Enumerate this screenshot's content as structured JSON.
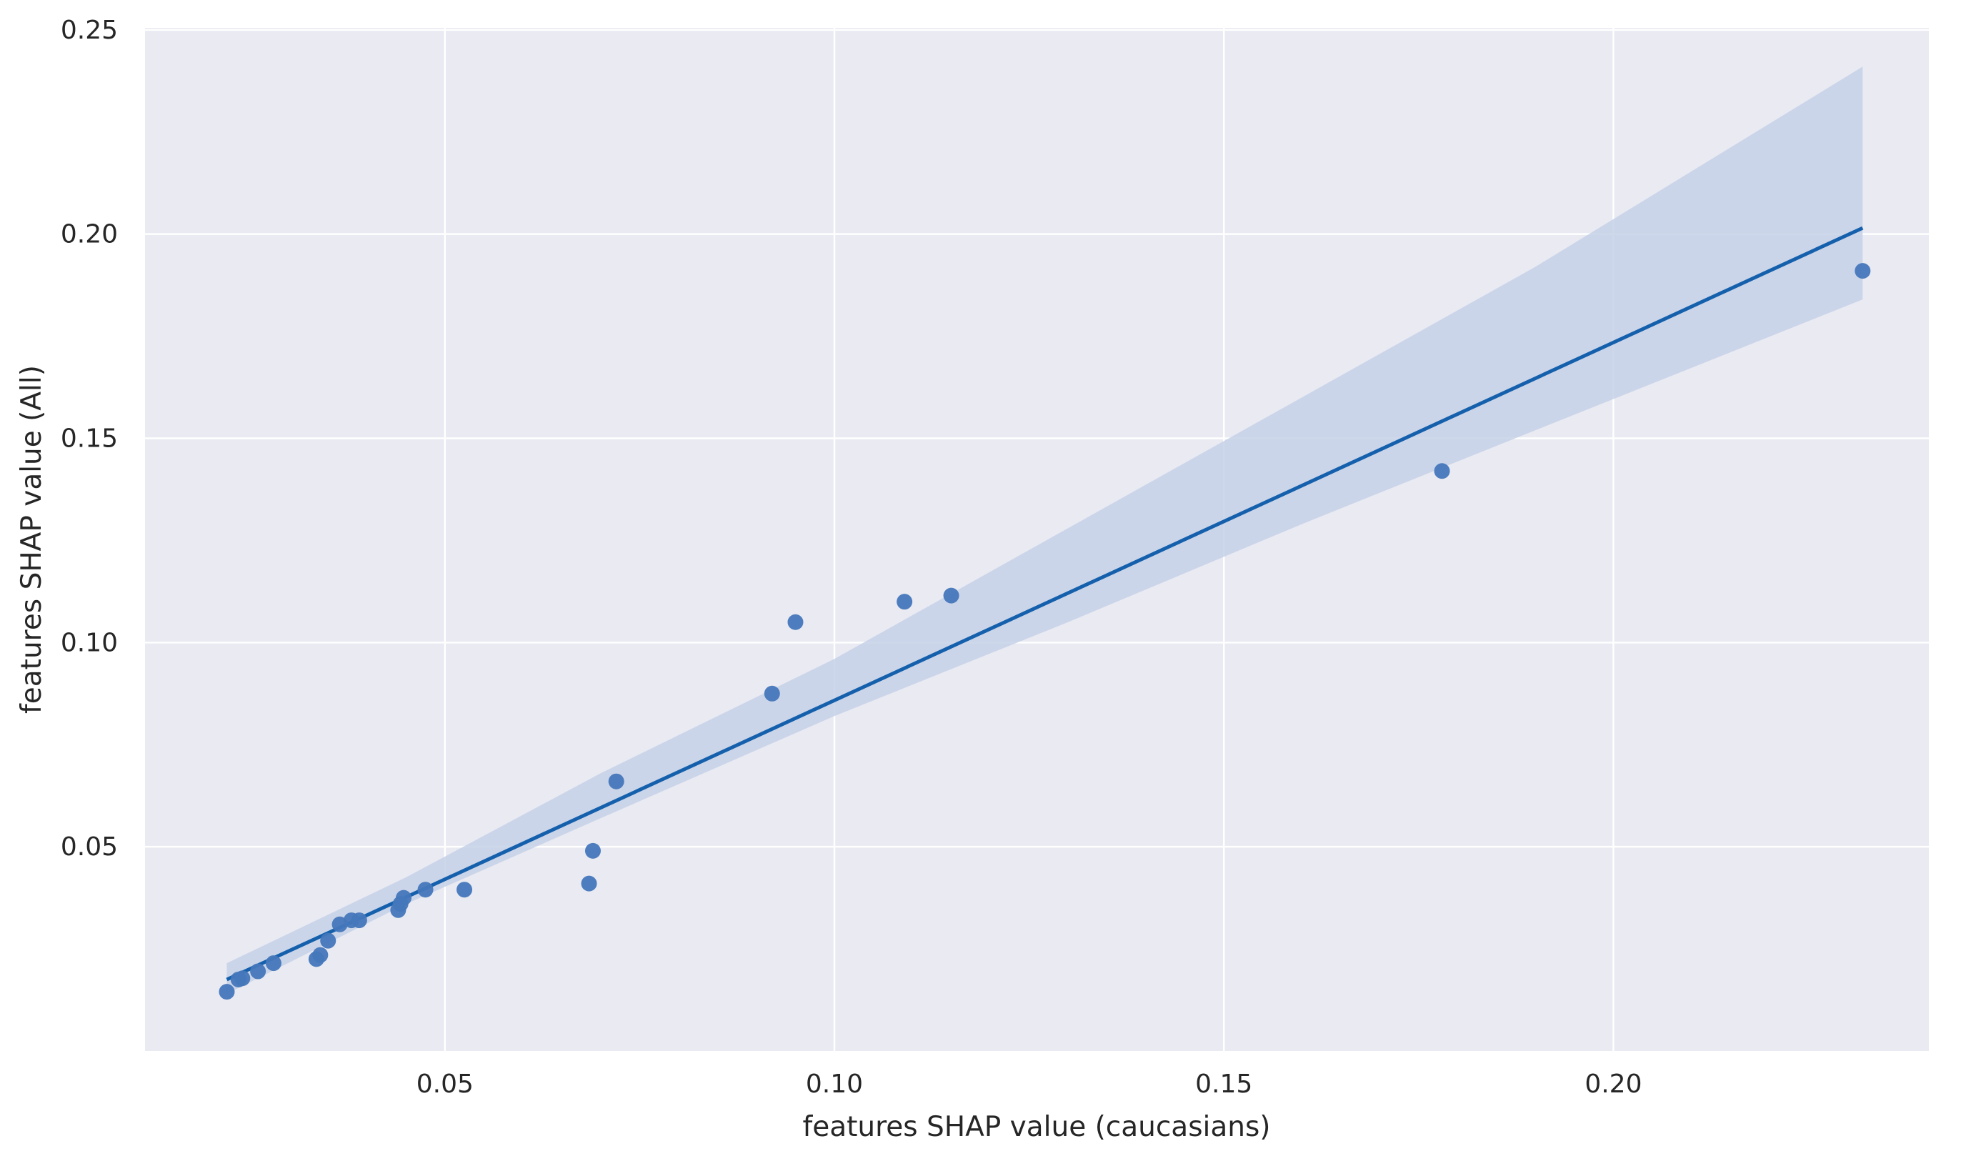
{
  "chart_data": {
    "type": "scatter",
    "title": "",
    "xlabel": "features SHAP value (caucasians)",
    "ylabel": "features SHAP value (All)",
    "xlim": [
      0.0115,
      0.2405
    ],
    "ylim": [
      0.0,
      0.2505
    ],
    "grid": true,
    "xticks": [
      0.05,
      0.1,
      0.15,
      0.2
    ],
    "xtick_labels": [
      "0.05",
      "0.10",
      "0.15",
      "0.20"
    ],
    "yticks": [
      0.05,
      0.1,
      0.15,
      0.2,
      0.25
    ],
    "ytick_labels": [
      "0.05",
      "0.10",
      "0.15",
      "0.20",
      "0.25"
    ],
    "points": [
      {
        "x": 0.022,
        "y": 0.0145
      },
      {
        "x": 0.0235,
        "y": 0.0175
      },
      {
        "x": 0.024,
        "y": 0.0178
      },
      {
        "x": 0.026,
        "y": 0.0195
      },
      {
        "x": 0.028,
        "y": 0.0215
      },
      {
        "x": 0.0335,
        "y": 0.0225
      },
      {
        "x": 0.034,
        "y": 0.0235
      },
      {
        "x": 0.035,
        "y": 0.027
      },
      {
        "x": 0.0365,
        "y": 0.031
      },
      {
        "x": 0.038,
        "y": 0.032
      },
      {
        "x": 0.039,
        "y": 0.032
      },
      {
        "x": 0.044,
        "y": 0.0345
      },
      {
        "x": 0.0443,
        "y": 0.036
      },
      {
        "x": 0.0447,
        "y": 0.0375
      },
      {
        "x": 0.0475,
        "y": 0.0395
      },
      {
        "x": 0.0525,
        "y": 0.0395
      },
      {
        "x": 0.0685,
        "y": 0.041
      },
      {
        "x": 0.069,
        "y": 0.049
      },
      {
        "x": 0.072,
        "y": 0.066
      },
      {
        "x": 0.092,
        "y": 0.0875
      },
      {
        "x": 0.095,
        "y": 0.105
      },
      {
        "x": 0.109,
        "y": 0.11
      },
      {
        "x": 0.115,
        "y": 0.1115
      },
      {
        "x": 0.178,
        "y": 0.142
      },
      {
        "x": 0.232,
        "y": 0.191
      }
    ],
    "regression": {
      "x_start": 0.022,
      "y_start": 0.0175,
      "x_end": 0.232,
      "y_end": 0.2015
    },
    "confidence_band": {
      "x": [
        0.022,
        0.045,
        0.07,
        0.1,
        0.13,
        0.16,
        0.19,
        0.232
      ],
      "upper": [
        0.0215,
        0.0425,
        0.068,
        0.096,
        0.128,
        0.16,
        0.192,
        0.241
      ],
      "lower": [
        0.014,
        0.036,
        0.057,
        0.082,
        0.105,
        0.129,
        0.152,
        0.184
      ]
    },
    "colors": {
      "background": "#ffffff",
      "plot_background": "#e9eaf2",
      "grid": "#ffffff",
      "points": "#4577bb",
      "line": "#1560ac",
      "band": "#c6d1e8",
      "text": "#262626"
    }
  }
}
